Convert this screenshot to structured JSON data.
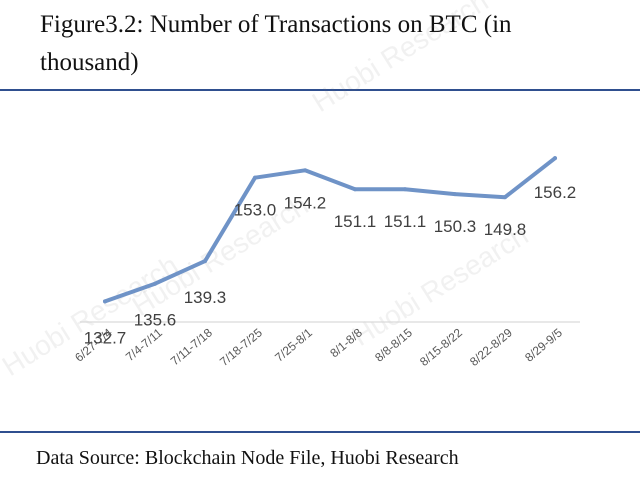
{
  "header": {
    "title": "Figure3.2: Number of Transactions on BTC (in thousand)"
  },
  "footer": {
    "source": "Data Source: Blockchain Node File, Huobi Research"
  },
  "watermark": {
    "text": "Huobi Research"
  },
  "colors": {
    "line": "#6f93c7",
    "rule": "#2f4f8f",
    "axis": "#d9d9d9"
  },
  "chart_data": {
    "type": "line",
    "title": "Figure3.2: Number of Transactions on BTC (in thousand)",
    "xlabel": "",
    "ylabel": "",
    "categories": [
      "6/27-7/4",
      "7/4-7/11",
      "7/11-7/18",
      "7/18-7/25",
      "7/25-8/1",
      "8/1-8/8",
      "8/8-8/15",
      "8/15-8/22",
      "8/22-8/29",
      "8/29-9/5"
    ],
    "series": [
      {
        "values": [
          132.7,
          135.6,
          139.3,
          153.0,
          154.2,
          151.1,
          151.1,
          150.3,
          149.8,
          156.2
        ]
      }
    ],
    "value_labels": [
      "132.7",
      "135.6",
      "139.3",
      "153.0",
      "154.2",
      "151.1",
      "151.1",
      "150.3",
      "149.8",
      "156.2"
    ],
    "ylim": [
      128,
      160
    ],
    "grid": false,
    "legend": "none"
  }
}
